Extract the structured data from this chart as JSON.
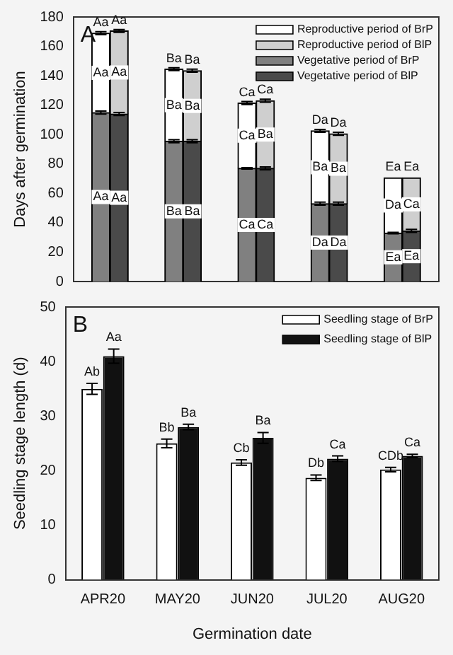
{
  "chart_data": [
    {
      "type": "bar",
      "ylabel": "Days after germination",
      "categories": [
        null,
        null,
        null,
        null,
        null,
        null,
        null,
        null,
        null,
        null,
        null,
        null,
        null,
        null,
        null,
        null,
        null,
        null,
        null,
        null
      ],
      "stacked": true,
      "tick_labels": "y",
      "legend": "top right",
      "grid": false,
      "ylim": [
        0,
        180
      ],
      "yticks": [
        0,
        20,
        40,
        60,
        80,
        100,
        120,
        140,
        160,
        180
      ],
      "annotations": [
        "A",
        {
          "text": "Aa",
          "y": 169
        },
        {
          "text": "Aa",
          "y": 170.5
        },
        {
          "text": "Ba",
          "y": 144.5
        },
        {
          "text": "Ba",
          "y": 143.5
        },
        {
          "text": "Ca",
          "y": 121.5
        },
        {
          "text": "Ca",
          "y": 123
        },
        {
          "text": "Da",
          "y": 102.5
        },
        {
          "text": "Da",
          "y": 100.5
        },
        {
          "text": "Ea",
          "y": 70.5
        },
        {
          "text": "Ea",
          "y": 70.5
        }
      ],
      "series": [
        {
          "name": "Vegetative period of BrP",
          "color": "#808080",
          "values": [
            null,
            115,
            null,
            null,
            null,
            95.5,
            null,
            null,
            null,
            77,
            null,
            null,
            null,
            53,
            null,
            null,
            null,
            33,
            null,
            null
          ],
          "errors": [
            null,
            1,
            null,
            null,
            null,
            1,
            null,
            null,
            null,
            0.5,
            null,
            null,
            null,
            1,
            null,
            null,
            null,
            0.5,
            null,
            null
          ],
          "value_labels": [
            null,
            "Aa",
            null,
            null,
            null,
            "Ba",
            null,
            null,
            null,
            "Ca",
            null,
            null,
            null,
            "Da",
            null,
            null,
            null,
            "Ea",
            null,
            null
          ]
        },
        {
          "name": "Vegetative period of BlP",
          "color": "#4a4a4a",
          "values": [
            null,
            null,
            114,
            null,
            null,
            null,
            95.5,
            null,
            null,
            null,
            77,
            null,
            null,
            null,
            53,
            null,
            null,
            null,
            34.5,
            null
          ],
          "errors": [
            null,
            null,
            1,
            null,
            null,
            null,
            1,
            null,
            null,
            null,
            1,
            null,
            null,
            null,
            1,
            null,
            null,
            null,
            1,
            null
          ],
          "value_labels": [
            null,
            null,
            "Aa",
            null,
            null,
            null,
            "Ba",
            null,
            null,
            null,
            "Ca",
            null,
            null,
            null,
            "Da",
            null,
            null,
            null,
            "Ea",
            null
          ]
        },
        {
          "name": "Reproductive period of BrP",
          "color": "#ffffff",
          "values": [
            null,
            54,
            null,
            null,
            null,
            49,
            null,
            null,
            null,
            44.5,
            null,
            null,
            null,
            49.5,
            null,
            null,
            null,
            37.5,
            null,
            null
          ],
          "errors": [
            null,
            1,
            null,
            null,
            null,
            1,
            null,
            null,
            null,
            1,
            null,
            null,
            null,
            1,
            null,
            null,
            null,
            null,
            null,
            null
          ],
          "value_labels": [
            null,
            "Aa",
            null,
            null,
            null,
            "Ba",
            null,
            null,
            null,
            "Ca",
            null,
            null,
            null,
            "Ba",
            null,
            null,
            null,
            "Da",
            null,
            null
          ]
        },
        {
          "name": "Reproductive period of BlP",
          "color": "#cfcfcf",
          "values": [
            null,
            null,
            56.5,
            null,
            null,
            null,
            48,
            null,
            null,
            null,
            46,
            null,
            null,
            null,
            47.5,
            null,
            null,
            null,
            36,
            null
          ],
          "errors": [
            null,
            null,
            1,
            null,
            null,
            null,
            1,
            null,
            null,
            null,
            1,
            null,
            null,
            null,
            1,
            null,
            null,
            null,
            null,
            null
          ],
          "value_labels": [
            null,
            null,
            "Aa",
            null,
            null,
            null,
            "Ba",
            null,
            null,
            null,
            "Ba",
            null,
            null,
            null,
            "Ba",
            null,
            null,
            null,
            "Ca",
            null
          ]
        }
      ]
    },
    {
      "type": "bar",
      "xlabel": "Germination date",
      "ylabel": "Seedling stage length (d)",
      "categories": [
        "APR20",
        "MAY20",
        "JUN20",
        "JUL20",
        "AUG20"
      ],
      "legend": "top right",
      "grid": false,
      "ylim": [
        0,
        50
      ],
      "yticks": [
        0,
        10,
        20,
        30,
        40,
        50
      ],
      "annotations": [
        "B"
      ],
      "series": [
        {
          "name": "Seedling stage of BrP",
          "color": "#ffffff",
          "values": [
            35,
            25,
            21.5,
            18.7,
            20.2
          ],
          "errors": [
            1,
            0.8,
            0.5,
            0.5,
            0.4
          ],
          "value_labels": [
            "Ab",
            "Bb",
            "Cb",
            "Db",
            "CDb"
          ]
        },
        {
          "name": "Seedling stage of BlP",
          "color": "#111111",
          "values": [
            41,
            28,
            26,
            22.2,
            22.7
          ],
          "errors": [
            1.3,
            0.5,
            1,
            0.5,
            0.3
          ],
          "value_labels": [
            "Aa",
            "Ba",
            "Ba",
            "Ca",
            "Ca"
          ]
        }
      ]
    }
  ]
}
